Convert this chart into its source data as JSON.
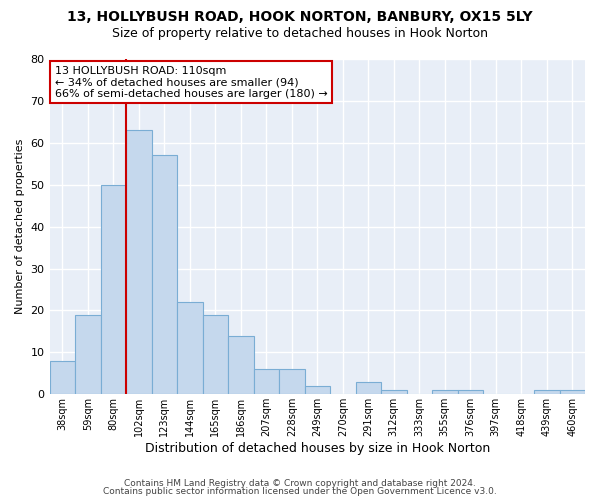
{
  "title1": "13, HOLLYBUSH ROAD, HOOK NORTON, BANBURY, OX15 5LY",
  "title2": "Size of property relative to detached houses in Hook Norton",
  "xlabel": "Distribution of detached houses by size in Hook Norton",
  "ylabel": "Number of detached properties",
  "bar_labels": [
    "38sqm",
    "59sqm",
    "80sqm",
    "102sqm",
    "123sqm",
    "144sqm",
    "165sqm",
    "186sqm",
    "207sqm",
    "228sqm",
    "249sqm",
    "270sqm",
    "291sqm",
    "312sqm",
    "333sqm",
    "355sqm",
    "376sqm",
    "397sqm",
    "418sqm",
    "439sqm",
    "460sqm"
  ],
  "bar_values": [
    8,
    19,
    50,
    63,
    57,
    22,
    19,
    14,
    6,
    6,
    2,
    0,
    3,
    1,
    0,
    1,
    1,
    0,
    0,
    1,
    1
  ],
  "bar_color": "#c5d8ed",
  "bar_edge_color": "#7aadd4",
  "vline_x_index": 3,
  "vline_color": "#cc0000",
  "annotation_text": "13 HOLLYBUSH ROAD: 110sqm\n← 34% of detached houses are smaller (94)\n66% of semi-detached houses are larger (180) →",
  "annotation_box_facecolor": "#ffffff",
  "annotation_box_edgecolor": "#cc0000",
  "ylim": [
    0,
    80
  ],
  "yticks": [
    0,
    10,
    20,
    30,
    40,
    50,
    60,
    70,
    80
  ],
  "footer1": "Contains HM Land Registry data © Crown copyright and database right 2024.",
  "footer2": "Contains public sector information licensed under the Open Government Licence v3.0.",
  "bg_color": "#ffffff",
  "plot_bg_color": "#e8eef7",
  "grid_color": "#ffffff",
  "title1_fontsize": 10,
  "title2_fontsize": 9,
  "xlabel_fontsize": 9,
  "ylabel_fontsize": 8,
  "tick_fontsize": 7,
  "annotation_fontsize": 8,
  "footer_fontsize": 6.5
}
